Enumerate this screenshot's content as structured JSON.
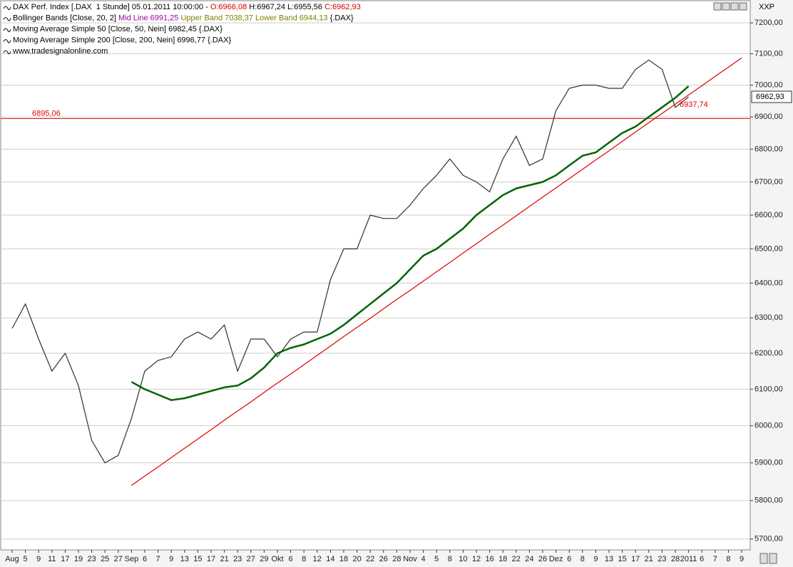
{
  "chart_data": {
    "type": "line",
    "symbol": "XXP",
    "log_y": true,
    "grid": true,
    "legend": [
      [
        {
          "text": "DAX Perf. Index [.DAX  1 Stunde] 05.01.2011 10:00:00 - ",
          "color": "#000000"
        },
        {
          "text": "O:6966,08",
          "color": "#d00000"
        },
        {
          "text": " H:6967,24 L:6955,56 ",
          "color": "#000000"
        },
        {
          "text": "C:6962,93",
          "color": "#d00000"
        }
      ],
      [
        {
          "text": "Bollinger Bands [Close, 20, 2] ",
          "color": "#000000"
        },
        {
          "text": "Mid Line 6991,25",
          "color": "#a000a0"
        },
        {
          "text": " Upper Band 7038,37 Lower Band 6944,13",
          "color": "#808000"
        },
        {
          "text": " {.DAX}",
          "color": "#000000"
        }
      ],
      [
        {
          "text": "Moving Average Simple 50 [Close, 50, Nein] 6982,45 {.DAX}",
          "color": "#000000"
        }
      ],
      [
        {
          "text": "Moving Average Simple 200 [Close, 200, Nein] 6996,77 {.DAX}",
          "color": "#000000"
        }
      ],
      [
        {
          "text": "www.tradesignalonline.com",
          "color": "#000000"
        }
      ]
    ],
    "categories": [
      "Aug",
      "5",
      "9",
      "11",
      "17",
      "19",
      "23",
      "25",
      "27",
      "Sep",
      "6",
      "7",
      "9",
      "13",
      "15",
      "17",
      "21",
      "23",
      "27",
      "29",
      "Okt",
      "6",
      "8",
      "12",
      "14",
      "18",
      "20",
      "22",
      "26",
      "28",
      "Nov",
      "4",
      "5",
      "8",
      "10",
      "12",
      "16",
      "18",
      "22",
      "24",
      "26",
      "Dez",
      "6",
      "8",
      "9",
      "13",
      "15",
      "17",
      "21",
      "23",
      "28",
      "2011",
      "6",
      "7",
      "8",
      "9"
    ],
    "series": [
      {
        "name": "DAX",
        "color": "#303030",
        "values": [
          6270,
          6340,
          6240,
          6150,
          6200,
          6110,
          5960,
          5900,
          5920,
          6020,
          6150,
          6180,
          6190,
          6240,
          6260,
          6240,
          6280,
          6150,
          6240,
          6240,
          6190,
          6240,
          6260,
          6260,
          6410,
          6500,
          6500,
          6600,
          6590,
          6590,
          6630,
          6680,
          6720,
          6770,
          6720,
          6700,
          6670,
          6770,
          6840,
          6750,
          6770,
          6920,
          6990,
          7000,
          7000,
          6990,
          6990,
          7050,
          7080,
          7050,
          6930,
          6962.93,
          null,
          null,
          null,
          null
        ]
      },
      {
        "name": "Moving Average Simple 200",
        "color": "#006400",
        "values": [
          null,
          null,
          null,
          null,
          null,
          null,
          null,
          null,
          null,
          6120,
          6100,
          6085,
          6070,
          6075,
          6085,
          6095,
          6105,
          6110,
          6130,
          6160,
          6200,
          6215,
          6225,
          6240,
          6255,
          6280,
          6310,
          6340,
          6370,
          6400,
          6440,
          6480,
          6500,
          6530,
          6560,
          6600,
          6630,
          6660,
          6680,
          6690,
          6700,
          6720,
          6750,
          6780,
          6790,
          6820,
          6850,
          6870,
          6900,
          6930,
          6960,
          6996.77,
          null,
          null,
          null,
          null
        ]
      },
      {
        "name": "Trendline",
        "color": "#e00000",
        "values": [
          null,
          null,
          null,
          null,
          null,
          null,
          null,
          null,
          null,
          5840,
          5865,
          5889,
          5914,
          5939,
          5964,
          5989,
          6015,
          6040,
          6065,
          6091,
          6117,
          6142,
          6168,
          6194,
          6220,
          6247,
          6273,
          6299,
          6326,
          6353,
          6379,
          6406,
          6433,
          6460,
          6488,
          6515,
          6543,
          6570,
          6598,
          6626,
          6654,
          6682,
          6710,
          6738,
          6767,
          6795,
          6824,
          6853,
          6882,
          6911,
          6940,
          6969,
          6998,
          7028,
          7057,
          7087
        ]
      }
    ],
    "hline": {
      "value": 6895.06,
      "label": "6895,06",
      "color": "#e00000"
    },
    "last_label": {
      "value": 6962.93,
      "label": "6962,93"
    },
    "trend_label": {
      "value": 6937.74,
      "label": "6937,74",
      "color": "#e00000"
    },
    "ylim": [
      5672,
      7275
    ],
    "yticks": [
      {
        "value": 5700,
        "label": "5700,00"
      },
      {
        "value": 5800,
        "label": "5800,00"
      },
      {
        "value": 5900,
        "label": "5900,00"
      },
      {
        "value": 6000,
        "label": "6000,00"
      },
      {
        "value": 6100,
        "label": "6100,00"
      },
      {
        "value": 6200,
        "label": "6200,00"
      },
      {
        "value": 6300,
        "label": "6300,00"
      },
      {
        "value": 6400,
        "label": "6400,00"
      },
      {
        "value": 6500,
        "label": "6500,00"
      },
      {
        "value": 6600,
        "label": "6600,00"
      },
      {
        "value": 6700,
        "label": "6700,00"
      },
      {
        "value": 6800,
        "label": "6800,00"
      },
      {
        "value": 6900,
        "label": "6900,00"
      },
      {
        "value": 7000,
        "label": "7000,00"
      },
      {
        "value": 7100,
        "label": "7100,00"
      },
      {
        "value": 7200,
        "label": "7200,00"
      }
    ]
  }
}
